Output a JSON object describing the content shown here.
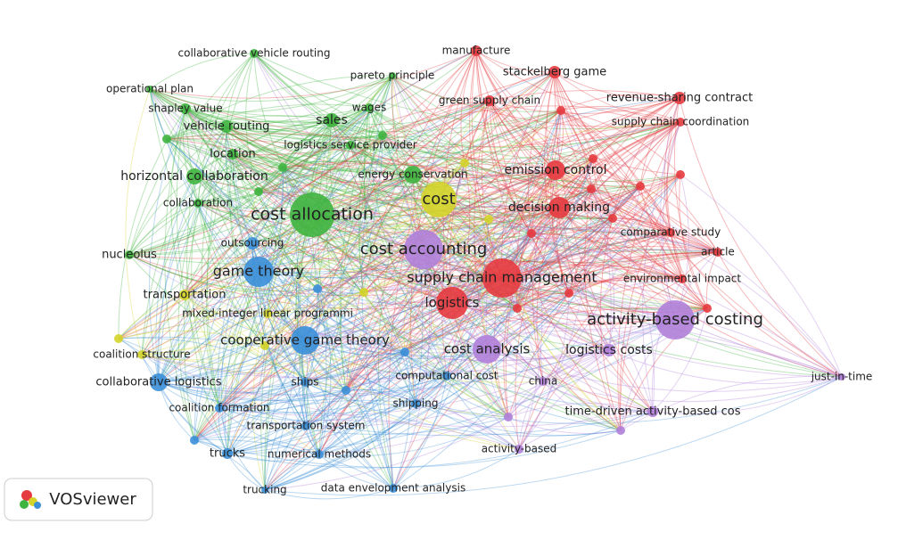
{
  "nodes": [
    {
      "label": "collaborative vehicle routing",
      "color": "#3fb43f"
    },
    {
      "label": "operational plan",
      "color": "#3fb43f"
    },
    {
      "label": "shapley value",
      "color": "#3fb43f"
    },
    {
      "label": "vehicle routing",
      "color": "#3fb43f"
    },
    {
      "label": "sales",
      "color": "#3fb43f"
    },
    {
      "label": "location",
      "color": "#3fb43f"
    },
    {
      "label": "horizontal collaboration",
      "color": "#3fb43f"
    },
    {
      "label": "collaboration",
      "color": "#3fb43f"
    },
    {
      "label": "cost allocation",
      "color": "#3fb43f"
    },
    {
      "label": "logistics service provider",
      "color": "#3fb43f"
    },
    {
      "label": "nucleolus",
      "color": "#3fb43f"
    },
    {
      "label": "pareto principle",
      "color": "#3fb43f"
    },
    {
      "label": "wages",
      "color": "#3fb43f"
    },
    {
      "label": "energy conservation",
      "color": "#3fb43f"
    },
    {
      "label": "manufacture",
      "color": "#e53a3f"
    },
    {
      "label": "stackelberg game",
      "color": "#e53a3f"
    },
    {
      "label": "green supply chain",
      "color": "#e53a3f"
    },
    {
      "label": "revenue-sharing contract",
      "color": "#e53a3f"
    },
    {
      "label": "supply chain coordination",
      "color": "#e53a3f"
    },
    {
      "label": "emission control",
      "color": "#e53a3f"
    },
    {
      "label": "decision making",
      "color": "#e53a3f"
    },
    {
      "label": "comparative study",
      "color": "#e53a3f"
    },
    {
      "label": "article",
      "color": "#e53a3f"
    },
    {
      "label": "environmental impact",
      "color": "#e53a3f"
    },
    {
      "label": "supply chain management",
      "color": "#e53a3f"
    },
    {
      "label": "logistics",
      "color": "#e53a3f"
    },
    {
      "label": "cost",
      "color": "#d4d42a"
    },
    {
      "label": "transportation",
      "color": "#d4d42a"
    },
    {
      "label": "mixed-integer linear programmi",
      "color": "#d4d42a"
    },
    {
      "label": "coalition structure",
      "color": "#d4d42a"
    },
    {
      "label": "outsourcing",
      "color": "#3b8fd8"
    },
    {
      "label": "game theory",
      "color": "#3b8fd8"
    },
    {
      "label": "cooperative game theory",
      "color": "#3b8fd8"
    },
    {
      "label": "collaborative logistics",
      "color": "#3b8fd8"
    },
    {
      "label": "ships",
      "color": "#3b8fd8"
    },
    {
      "label": "coalition formation",
      "color": "#3b8fd8"
    },
    {
      "label": "transportation system",
      "color": "#3b8fd8"
    },
    {
      "label": "trucks",
      "color": "#3b8fd8"
    },
    {
      "label": "numerical methods",
      "color": "#3b8fd8"
    },
    {
      "label": "trucking",
      "color": "#3b8fd8"
    },
    {
      "label": "data envelopment analysis",
      "color": "#3b8fd8"
    },
    {
      "label": "shipping",
      "color": "#3b8fd8"
    },
    {
      "label": "computational cost",
      "color": "#3b8fd8"
    },
    {
      "label": "cost accounting",
      "color": "#b07fd9"
    },
    {
      "label": "activity-based costing",
      "color": "#b07fd9"
    },
    {
      "label": "cost analysis",
      "color": "#b07fd9"
    },
    {
      "label": "logistics costs",
      "color": "#b07fd9"
    },
    {
      "label": "china",
      "color": "#b07fd9"
    },
    {
      "label": "time-driven activity-based cos",
      "color": "#b07fd9"
    },
    {
      "label": "activity-based",
      "color": "#b07fd9"
    },
    {
      "label": "just-in-time",
      "color": "#b07fd9"
    }
  ],
  "logo": "VOSviewer"
}
